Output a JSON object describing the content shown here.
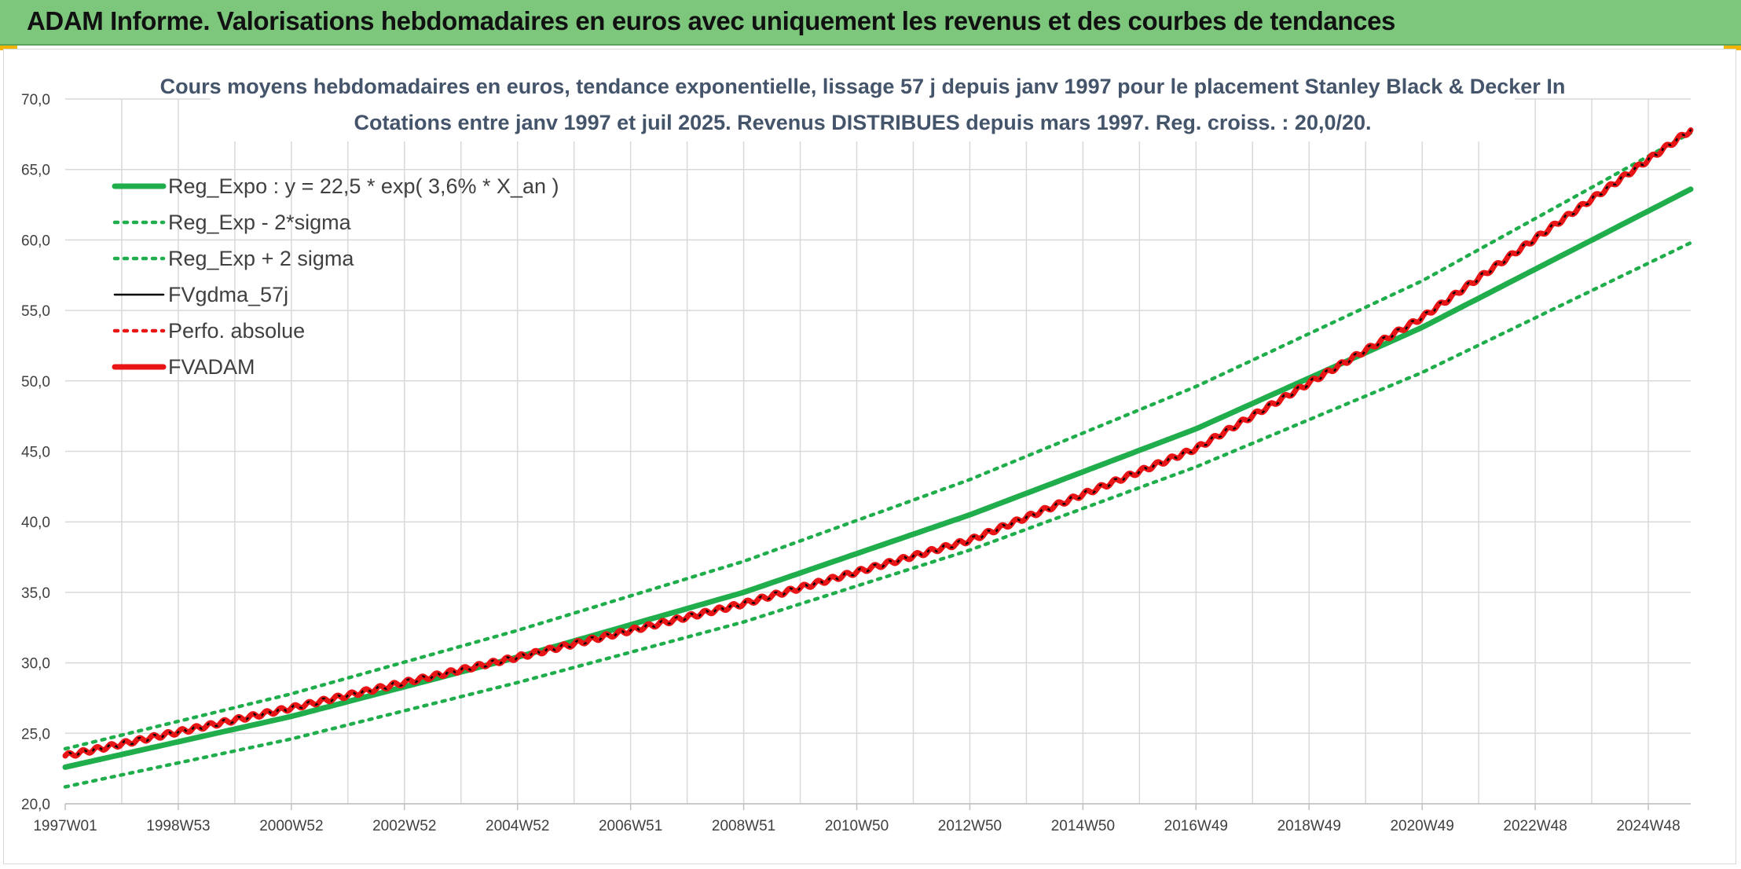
{
  "banner": {
    "title": "ADAM Informe. Valorisations hebdomadaires en euros avec uniquement les revenus et des courbes de tendances"
  },
  "colors": {
    "banner_bg": "#7dc77d",
    "green": "#1fae4b",
    "red": "#e81416",
    "black": "#000000",
    "grid": "#d9d9d9",
    "title_text": "#44546a"
  },
  "chart_data": {
    "type": "line",
    "title_line1": "Cours moyens hebdomadaires en euros, tendance exponentielle, lissage 57 j depuis janv 1997 pour le placement Stanley Black & Decker In",
    "title_line2": "Cotations entre janv 1997 et juil 2025. Revenus DISTRIBUES depuis mars 1997. Reg. croiss. : 20,0/20.",
    "xlabel": "",
    "ylabel": "",
    "x_range": [
      1997.0,
      2025.75
    ],
    "ylim": [
      20,
      70
    ],
    "y_ticks": [
      "20,0",
      "25,0",
      "30,0",
      "35,0",
      "40,0",
      "45,0",
      "50,0",
      "55,0",
      "60,0",
      "65,0",
      "70,0"
    ],
    "x_ticks": [
      {
        "label": "1997W01",
        "x": 1997.0
      },
      {
        "label": "1998W53",
        "x": 1999.0
      },
      {
        "label": "2000W52",
        "x": 2001.0
      },
      {
        "label": "2002W52",
        "x": 2003.0
      },
      {
        "label": "2004W52",
        "x": 2005.0
      },
      {
        "label": "2006W51",
        "x": 2007.0
      },
      {
        "label": "2008W51",
        "x": 2009.0
      },
      {
        "label": "2010W50",
        "x": 2011.0
      },
      {
        "label": "2012W50",
        "x": 2013.0
      },
      {
        "label": "2014W50",
        "x": 2015.0
      },
      {
        "label": "2016W49",
        "x": 2017.0
      },
      {
        "label": "2018W49",
        "x": 2019.0
      },
      {
        "label": "2020W49",
        "x": 2021.0
      },
      {
        "label": "2022W48",
        "x": 2023.0
      },
      {
        "label": "2024W48",
        "x": 2025.0
      }
    ],
    "grid": true,
    "legend_position": "top-left",
    "series": [
      {
        "name": "Reg_Expo : y = 22,5 * exp( 3,6% *  X_an )",
        "style": "solid-thick",
        "color": "#1fae4b",
        "x": [
          1997.0,
          2001.0,
          2005.0,
          2009.0,
          2013.0,
          2017.0,
          2021.0,
          2025.75
        ],
        "values": [
          22.6,
          26.2,
          30.4,
          35.0,
          40.5,
          46.6,
          53.8,
          63.6
        ]
      },
      {
        "name": "Reg_Exp - 2*sigma",
        "style": "dotted",
        "color": "#1fae4b",
        "x": [
          1997.0,
          2001.0,
          2005.0,
          2009.0,
          2013.0,
          2017.0,
          2021.0,
          2025.75
        ],
        "values": [
          21.2,
          24.6,
          28.6,
          32.9,
          38.0,
          43.9,
          50.6,
          59.8
        ]
      },
      {
        "name": "Reg_Exp + 2 sigma",
        "style": "dotted",
        "color": "#1fae4b",
        "x": [
          1997.0,
          2001.0,
          2005.0,
          2009.0,
          2013.0,
          2017.0,
          2021.0,
          2025.75
        ],
        "values": [
          23.9,
          27.8,
          32.3,
          37.2,
          43.0,
          49.6,
          57.1,
          67.6
        ]
      },
      {
        "name": "FVgdma_57j",
        "style": "solid",
        "color": "#000000",
        "x": [
          1997.0,
          2001.0,
          2005.0,
          2009.0,
          2013.0,
          2017.0,
          2021.0,
          2025.75
        ],
        "values": [
          23.4,
          26.8,
          30.4,
          34.2,
          38.7,
          45.2,
          54.5,
          67.8
        ]
      },
      {
        "name": "Perfo. absolue",
        "style": "dotted",
        "color": "#e81416",
        "x": [
          1997.0,
          2001.0,
          2005.0,
          2009.0,
          2013.0,
          2017.0,
          2021.0,
          2025.75
        ],
        "values": [
          23.4,
          26.8,
          30.4,
          34.2,
          38.7,
          45.2,
          54.5,
          67.8
        ]
      },
      {
        "name": "FVADAM",
        "style": "solid-thick",
        "color": "#e81416",
        "x": [
          1997.0,
          2001.0,
          2005.0,
          2009.0,
          2013.0,
          2017.0,
          2021.0,
          2025.75
        ],
        "values": [
          23.4,
          26.8,
          30.4,
          34.2,
          38.7,
          45.2,
          54.5,
          67.8
        ]
      }
    ]
  }
}
